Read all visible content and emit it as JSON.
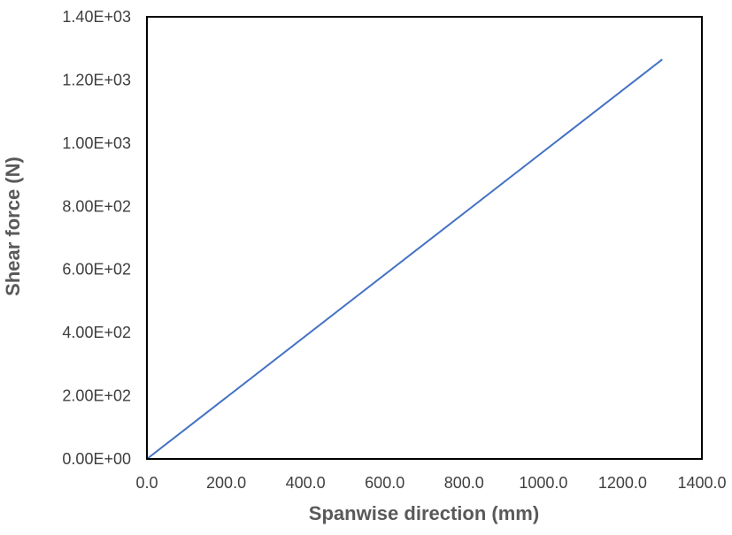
{
  "chart_data": {
    "type": "line",
    "title": "",
    "xlabel": "Spanwise direction (mm)",
    "ylabel": "Shear force (N)",
    "xlim": [
      0,
      1400
    ],
    "ylim": [
      0,
      1400
    ],
    "x_ticks": [
      0,
      200,
      400,
      600,
      800,
      1000,
      1200,
      1400
    ],
    "x_tick_labels": [
      "0.0",
      "200.0",
      "400.0",
      "600.0",
      "800.0",
      "1000.0",
      "1200.0",
      "1400.0"
    ],
    "y_ticks": [
      0,
      200,
      400,
      600,
      800,
      1000,
      1200,
      1400
    ],
    "y_tick_labels": [
      "0.00E+00",
      "2.00E+02",
      "4.00E+02",
      "6.00E+02",
      "8.00E+02",
      "1.00E+03",
      "1.20E+03",
      "1.40E+03"
    ],
    "grid": false,
    "legend": "none",
    "series": [
      {
        "color": "#4472c4",
        "x": [
          0,
          1300
        ],
        "y": [
          0,
          1265
        ]
      }
    ]
  }
}
